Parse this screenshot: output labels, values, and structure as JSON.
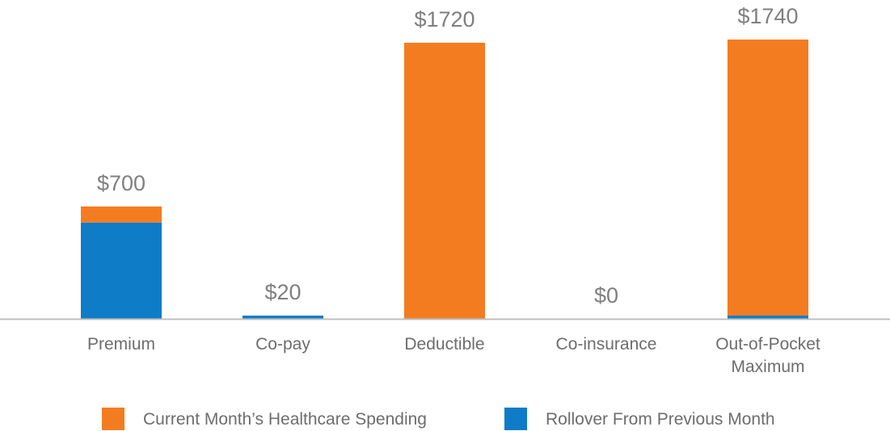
{
  "chart_data": {
    "type": "bar",
    "stacked": true,
    "categories": [
      [
        "Premium"
      ],
      [
        "Co-pay"
      ],
      [
        "Deductible"
      ],
      [
        "Co-insurance"
      ],
      [
        "Out-of-Pocket",
        "Maximum"
      ]
    ],
    "series": [
      {
        "name": "Rollover From Previous Month",
        "color": "#0f7cc8",
        "values": [
          600,
          20,
          0,
          0,
          20
        ]
      },
      {
        "name": "Current Month’s Healthcare Spending",
        "color": "#f47c20",
        "values": [
          100,
          0,
          1720,
          0,
          1720
        ]
      }
    ],
    "total_labels": [
      "$700",
      "$20",
      "$1720",
      "$0",
      "$1740"
    ],
    "legend_order": [
      1,
      0
    ],
    "legend_position": "bottom",
    "ylim": [
      0,
      1750
    ],
    "grid": false,
    "axis_color": "#bfbfbf"
  }
}
